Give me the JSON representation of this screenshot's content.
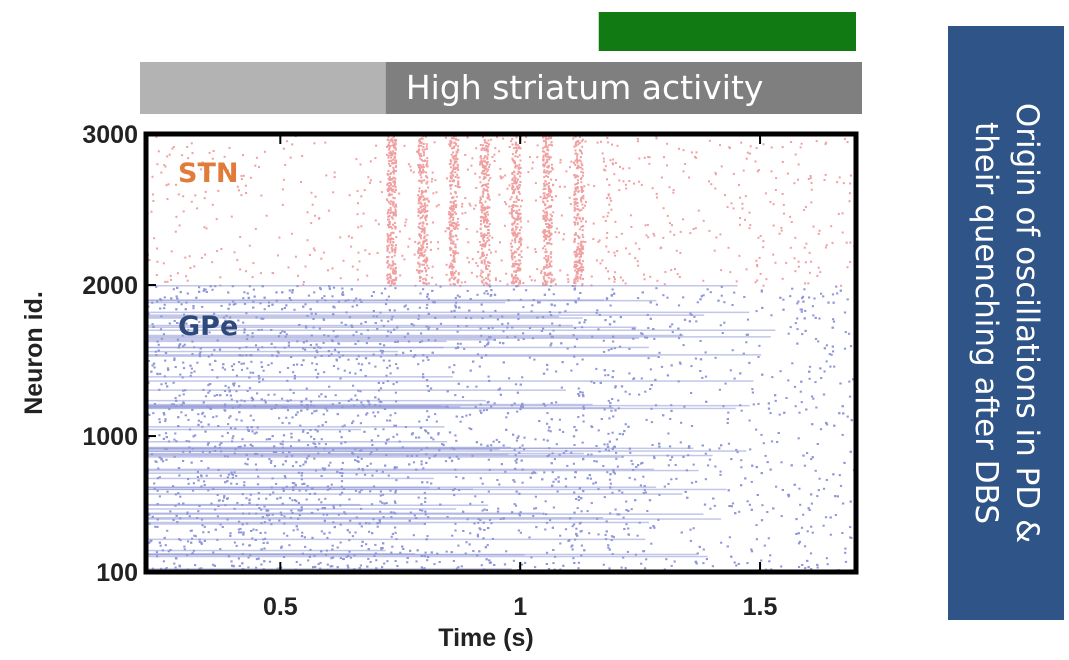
{
  "chart_data": {
    "type": "scatter",
    "subtype": "spike raster",
    "xlabel": "Time (s)",
    "ylabel": "Neuron id.",
    "xlim": [
      0.22,
      1.7
    ],
    "ylim": [
      100,
      3000
    ],
    "xticks": [
      0.5,
      1,
      1.5
    ],
    "xtick_labels": [
      "0.5",
      "1",
      "1.5"
    ],
    "yticks": [
      100,
      1000,
      2000,
      3000
    ],
    "ytick_labels": [
      "100",
      "1000",
      "2000",
      "3000"
    ],
    "grid": false,
    "series": [
      {
        "name": "STN",
        "neuron_range": [
          2000,
          3000
        ],
        "color": "#f0a0a0"
      },
      {
        "name": "GPe",
        "neuron_range": [
          100,
          2000
        ],
        "color": "#8f97d6"
      }
    ],
    "series_label_colors": {
      "STN": "#e07b39",
      "GPe": "#2e4a7a"
    },
    "phases": [
      {
        "label": "",
        "start": 0.22,
        "end": 0.72,
        "color": "#b3b3b3"
      },
      {
        "label": "High striatum activity",
        "start": 0.72,
        "end": 1.7,
        "color": "#7f7f7f"
      }
    ],
    "green_bar": {
      "start": 1.17,
      "end": 1.7,
      "color": "#127a12"
    },
    "oscillation_period_s": 0.065,
    "oscillation_window_s": [
      0.72,
      1.2
    ]
  },
  "side_panel": {
    "lines": [
      "Origin of oscillations in PD &",
      "their quenching after DBS"
    ],
    "color": "#2f5487"
  }
}
